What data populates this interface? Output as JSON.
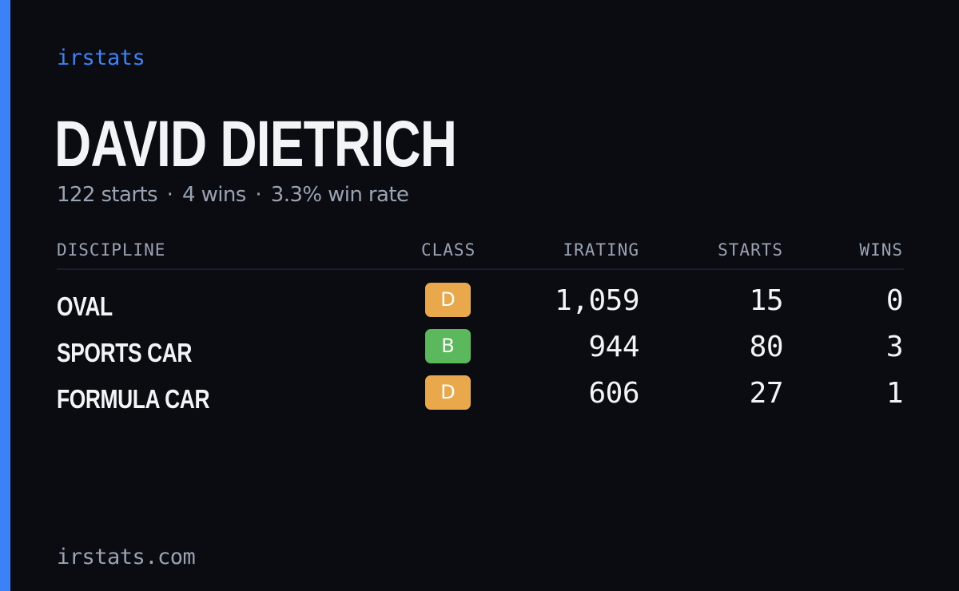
{
  "brand": "irstats",
  "driver": {
    "name": "DAVID DIETRICH",
    "summary": {
      "starts": "122 starts",
      "wins": "4 wins",
      "win_rate": "3.3% win rate",
      "separator": "·"
    }
  },
  "table": {
    "headers": {
      "discipline": "DISCIPLINE",
      "class": "CLASS",
      "irating": "IRATING",
      "starts": "STARTS",
      "wins": "WINS"
    },
    "rows": [
      {
        "discipline": "OVAL",
        "class": "D",
        "class_color": "#e9a84c",
        "irating": "1,059",
        "starts": "15",
        "wins": "0"
      },
      {
        "discipline": "SPORTS CAR",
        "class": "B",
        "class_color": "#5cb85c",
        "irating": "944",
        "starts": "80",
        "wins": "3"
      },
      {
        "discipline": "FORMULA CAR",
        "class": "D",
        "class_color": "#e9a84c",
        "irating": "606",
        "starts": "27",
        "wins": "1"
      }
    ]
  },
  "footer": "irstats.com",
  "colors": {
    "accent": "#3b82f6",
    "background": "#0a0c12",
    "class_d": "#e9a84c",
    "class_b": "#5cb85c"
  }
}
